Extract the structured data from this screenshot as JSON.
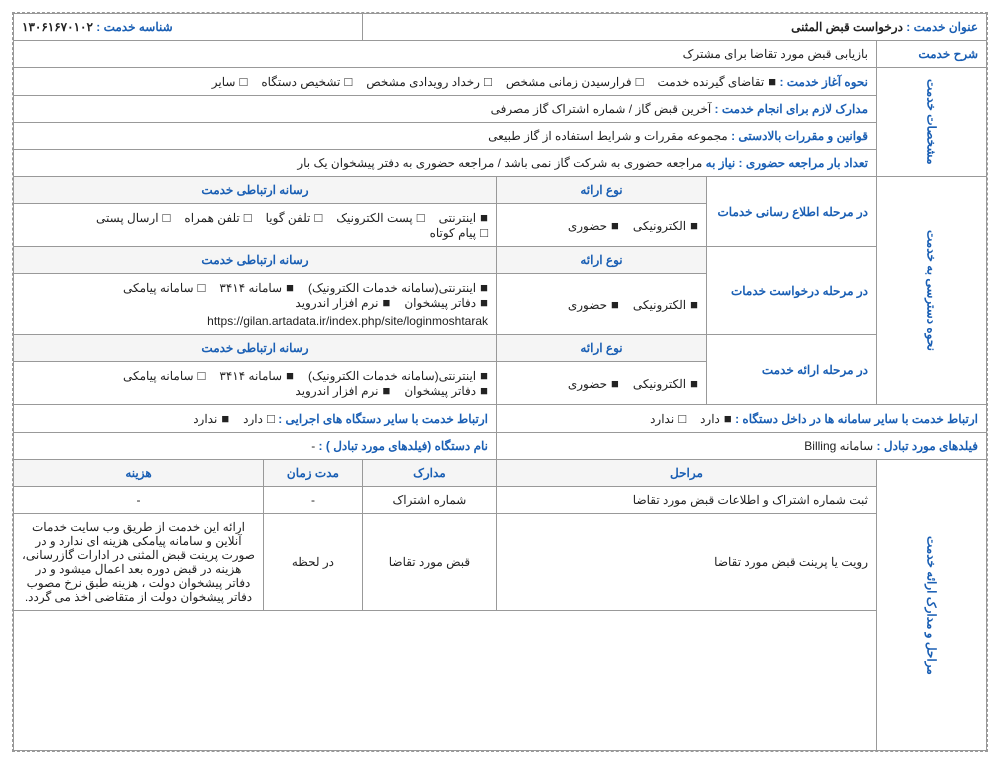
{
  "header": {
    "title_label": "عنوان خدمت :",
    "title_value": "درخواست قبض المثنی",
    "id_label": "شناسه خدمت :",
    "id_value": "۱۳۰۶۱۶۷۰۱۰۲"
  },
  "desc": {
    "label": "شرح خدمت",
    "value": "بازیابی قبض مورد تقاضا برای مشترک"
  },
  "specs": {
    "side_label": "مشخصات خدمت",
    "start": {
      "label": "نحوه آغاز خدمت :",
      "opts": [
        {
          "t": "تقاضای گیرنده خدمت",
          "f": true
        },
        {
          "t": "فرارسیدن زمانی مشخص",
          "f": false
        },
        {
          "t": "رخداد رویدادی مشخص",
          "f": false
        },
        {
          "t": "تشخیص دستگاه",
          "f": false
        },
        {
          "t": "سایر",
          "f": false
        }
      ]
    },
    "docs": {
      "label": "مدارک لازم برای انجام خدمت :",
      "value": "آخرین قبض گاز / شماره اشتراک گاز مصرفی"
    },
    "laws": {
      "label": "قوانین و مقررات بالادستی :",
      "value": "مجموعه مقررات و شرایط استفاده از گاز طبیعی"
    },
    "visits": {
      "label": "تعداد بار مراجعه حضوری :",
      "pre": "نیاز به",
      "value": "مراجعه حضوری به شرکت گاز نمی باشد / مراجعه حضوری به دفتر پیشخوان یک بار"
    }
  },
  "access": {
    "side_label": "نحوه دسترسی به خدمت",
    "type_hdr": "نوع ارائه",
    "media_hdr": "رسانه ارتباطی خدمت",
    "rows": [
      {
        "stage": "در مرحله اطلاع رسانی خدمات",
        "types": [
          {
            "t": "الکترونیکی",
            "f": true
          },
          {
            "t": "حضوری",
            "f": true
          }
        ],
        "media": [
          {
            "t": "اینترنتی",
            "f": true
          },
          {
            "t": "پست الکترونیک",
            "f": false
          },
          {
            "t": "تلفن گویا",
            "f": false
          },
          {
            "t": "تلفن همراه",
            "f": false
          },
          {
            "t": "ارسال پستی",
            "f": false
          },
          {
            "t": "پیام کوتاه",
            "f": false
          }
        ],
        "url": ""
      },
      {
        "stage": "در مرحله درخواست خدمات",
        "types": [
          {
            "t": "الکترونیکی",
            "f": true
          },
          {
            "t": "حضوری",
            "f": true
          }
        ],
        "media": [
          {
            "t": "اینترنتی(سامانه خدمات الکترونیک)",
            "f": true
          },
          {
            "t": "سامانه ۳۴۱۴",
            "f": true
          },
          {
            "t": "سامانه پیامکی",
            "f": false
          },
          {
            "t": "دفاتر پیشخوان",
            "f": true
          },
          {
            "t": "نرم افزار اندروید",
            "f": true
          }
        ],
        "url": "https://gilan.artadata.ir/index.php/site/loginmoshtarak"
      },
      {
        "stage": "در مرحله ارائه خدمت",
        "types": [
          {
            "t": "الکترونیکی",
            "f": true
          },
          {
            "t": "حضوری",
            "f": true
          }
        ],
        "media": [
          {
            "t": "اینترنتی(سامانه خدمات الکترونیک)",
            "f": true
          },
          {
            "t": "سامانه ۳۴۱۴",
            "f": true
          },
          {
            "t": "سامانه پیامکی",
            "f": false
          },
          {
            "t": "دفاتر پیشخوان",
            "f": true
          },
          {
            "t": "نرم افزار اندروید",
            "f": true
          }
        ],
        "url": ""
      }
    ]
  },
  "relation": {
    "internal": {
      "label": "ارتباط خدمت با سایر سامانه ها در داخل دستگاه :",
      "opts": [
        {
          "t": "دارد",
          "f": true
        },
        {
          "t": "ندارد",
          "f": false
        }
      ]
    },
    "external": {
      "label": "ارتباط خدمت با سایر دستگاه های اجرایی :",
      "opts": [
        {
          "t": "دارد",
          "f": false
        },
        {
          "t": "ندارد",
          "f": true
        }
      ]
    },
    "fields": {
      "label": "فیلدهای مورد تبادل :",
      "value": "سامانه Billing"
    },
    "org": {
      "label": "نام دستگاه (فیلدهای مورد تبادل ) :",
      "value": "-"
    }
  },
  "steps": {
    "side_label": "مراحل و مدارک ارائه خدمت",
    "headers": {
      "step": "مراحل",
      "doc": "مدارک",
      "time": "مدت زمان",
      "cost": "هزینه"
    },
    "rows": [
      {
        "step": "ثبت شماره اشتراک و اطلاعات قبض مورد تقاضا",
        "doc": "شماره اشتراک",
        "time": "-",
        "cost": "-"
      },
      {
        "step": "رویت یا پرینت قبض مورد تقاضا",
        "doc": "قبض مورد تقاضا",
        "time": "در لحظه",
        "cost": "ارائه این خدمت از طریق وب سایت خدمات آنلاین و سامانه پیامکی هزینه ای ندارد و در صورت پرینت قبض المثنی در ادارات گازرسانی، هزینه در قبض دوره بعد اعمال میشود و در دفاتر پیشخوان دولت ، هزینه طبق نرخ مصوب دفاتر پیشخوان دولت از متقاضی اخذ می گردد."
      }
    ]
  }
}
